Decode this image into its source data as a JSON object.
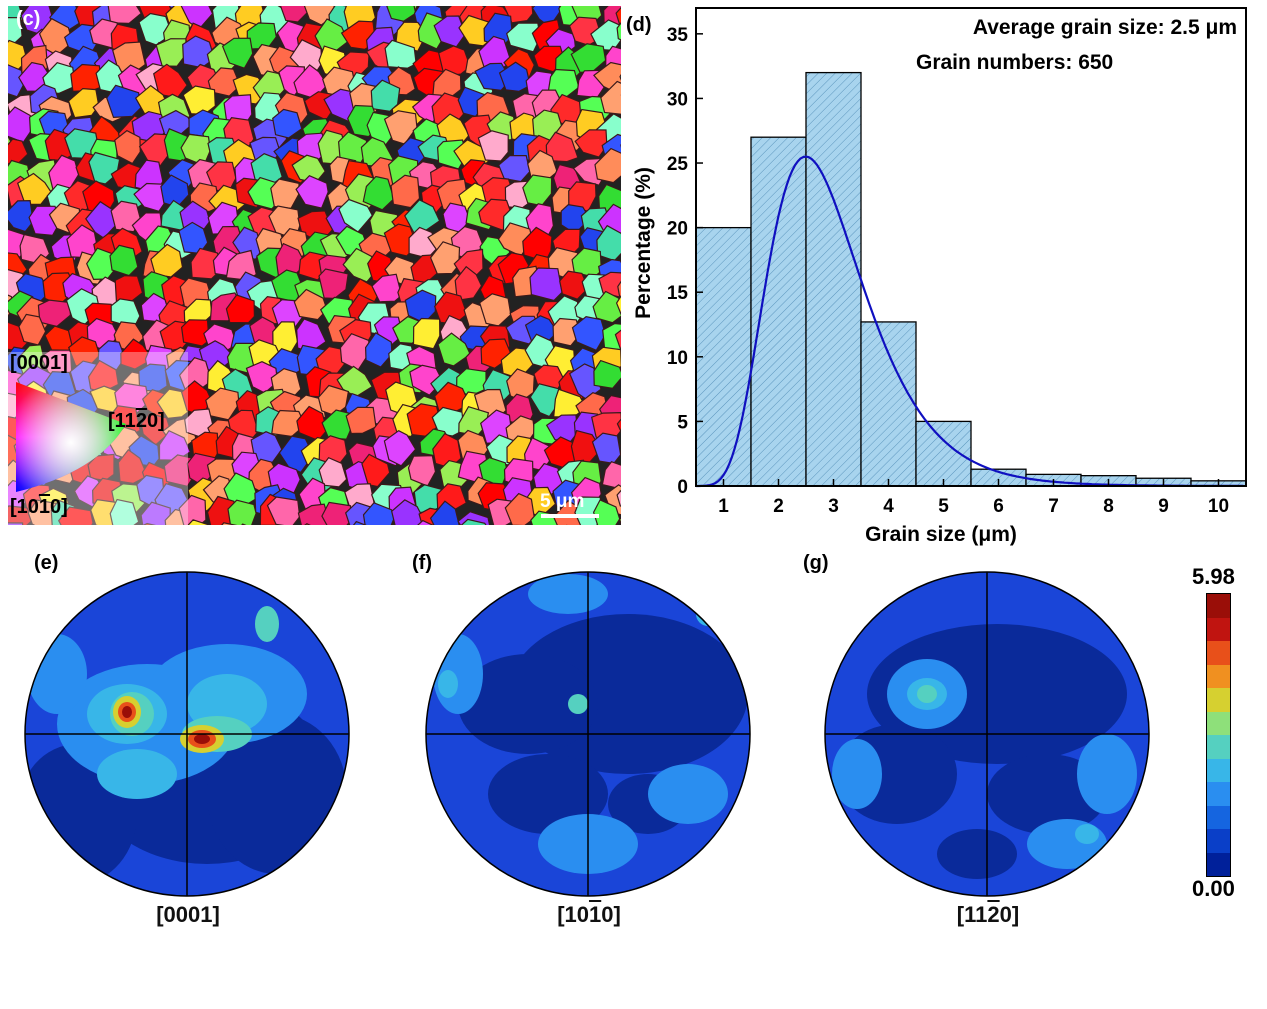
{
  "panels": {
    "c": {
      "label": "(c)",
      "scale_bar": "5 μm",
      "legend": {
        "top": "[0001]",
        "right": "[11",
        "right_bar": "2",
        "right_end": "0]",
        "bottom": "[10",
        "bottom_bar": "1",
        "bottom_end": "0]"
      }
    },
    "d": {
      "label": "(d)"
    },
    "e": {
      "label": "(e)",
      "caption": "[0001]"
    },
    "f": {
      "label": "(f)",
      "caption_a": "[10",
      "caption_bar": "1",
      "caption_b": "0]"
    },
    "g": {
      "label": "(g)",
      "caption_a": "[11",
      "caption_bar": "2",
      "caption_b": "0]"
    }
  },
  "colorbar": {
    "max": "5.98",
    "min": "0.00",
    "colors": [
      "#00209a",
      "#0a3fc8",
      "#1565e0",
      "#2a8ef0",
      "#38b6e8",
      "#55d0c0",
      "#8ee07a",
      "#d6d030",
      "#f09020",
      "#e8501a",
      "#c01410",
      "#9a0e08"
    ]
  },
  "chart_data": {
    "type": "bar",
    "annotations": [
      "Average grain size: 2.5 μm",
      "Grain numbers: 650"
    ],
    "xlabel": "Grain size (μm)",
    "ylabel": "Percentage (%)",
    "categories": [
      "1",
      "2",
      "3",
      "4",
      "5",
      "6",
      "7",
      "8",
      "9",
      "10"
    ],
    "values": [
      20,
      27,
      32,
      12.7,
      5,
      1.3,
      0.9,
      0.8,
      0.6,
      0.4
    ],
    "xlim": [
      0.5,
      10.5
    ],
    "ylim": [
      0,
      37
    ],
    "yticks": [
      0,
      5,
      10,
      15,
      20,
      25,
      30,
      35
    ],
    "xticks": [
      1,
      2,
      3,
      4,
      5,
      6,
      7,
      8,
      9,
      10
    ],
    "bar_color": "#a8d4ee",
    "fit_curve": {
      "type": "lognormal",
      "peak_x": 2.5,
      "peak_y": 25.5,
      "color": "#1010c0"
    }
  }
}
